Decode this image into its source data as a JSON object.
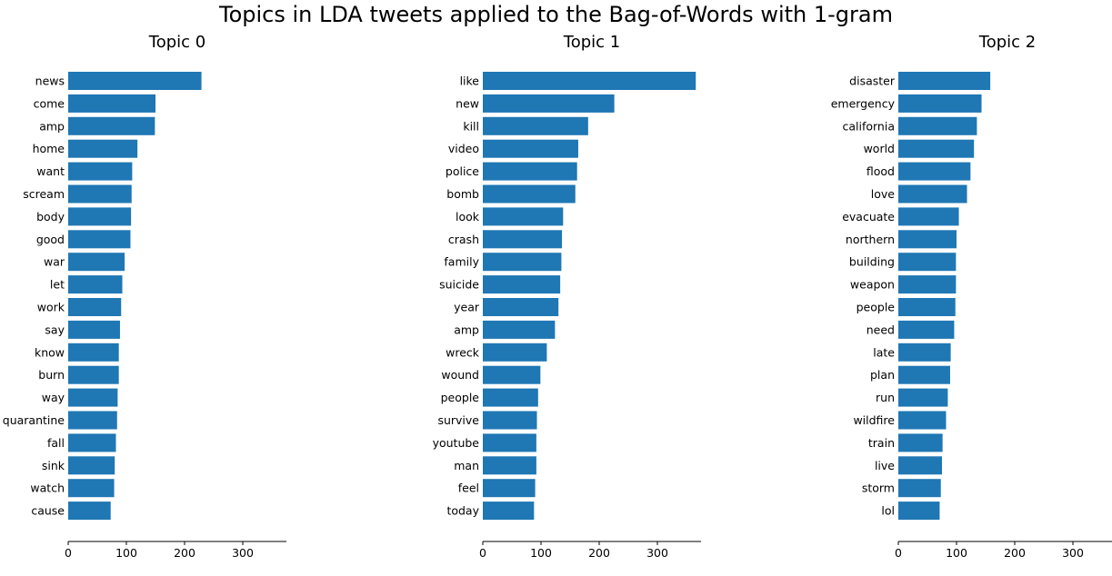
{
  "figure": {
    "title": "Topics in LDA tweets applied to the Bag-of-Words with 1-gram"
  },
  "colors": {
    "bar": "#1f77b4",
    "axis": "#000000",
    "text": "#000000"
  },
  "chart_data": [
    {
      "type": "bar",
      "orientation": "horizontal",
      "title": "Topic 0",
      "xlabel": "",
      "ylabel": "",
      "xlim": [
        0,
        375
      ],
      "xticks": [
        0,
        100,
        200,
        300
      ],
      "grid": false,
      "categories": [
        "news",
        "come",
        "amp",
        "home",
        "want",
        "scream",
        "body",
        "good",
        "war",
        "let",
        "work",
        "say",
        "know",
        "burn",
        "way",
        "quarantine",
        "fall",
        "sink",
        "watch",
        "cause"
      ],
      "values": [
        229,
        150,
        149,
        119,
        110,
        109,
        108,
        107,
        97,
        93,
        91,
        89,
        87,
        87,
        85,
        84,
        82,
        80,
        79,
        73
      ]
    },
    {
      "type": "bar",
      "orientation": "horizontal",
      "title": "Topic 1",
      "xlabel": "",
      "ylabel": "",
      "xlim": [
        0,
        375
      ],
      "xticks": [
        0,
        100,
        200,
        300
      ],
      "grid": false,
      "categories": [
        "like",
        "new",
        "kill",
        "video",
        "police",
        "bomb",
        "look",
        "crash",
        "family",
        "suicide",
        "year",
        "amp",
        "wreck",
        "wound",
        "people",
        "survive",
        "youtube",
        "man",
        "feel",
        "today"
      ],
      "values": [
        366,
        226,
        181,
        164,
        162,
        159,
        138,
        136,
        135,
        133,
        130,
        124,
        110,
        99,
        95,
        93,
        92,
        92,
        90,
        88
      ]
    },
    {
      "type": "bar",
      "orientation": "horizontal",
      "title": "Topic 2",
      "xlabel": "",
      "ylabel": "",
      "xlim": [
        0,
        375
      ],
      "xticks": [
        0,
        100,
        200,
        300
      ],
      "grid": false,
      "categories": [
        "disaster",
        "emergency",
        "california",
        "world",
        "flood",
        "love",
        "evacuate",
        "northern",
        "building",
        "weapon",
        "people",
        "need",
        "late",
        "plan",
        "run",
        "wildfire",
        "train",
        "live",
        "storm",
        "lol"
      ],
      "values": [
        158,
        143,
        135,
        130,
        124,
        118,
        104,
        100,
        99,
        99,
        98,
        96,
        90,
        89,
        85,
        82,
        76,
        75,
        73,
        71
      ]
    }
  ]
}
